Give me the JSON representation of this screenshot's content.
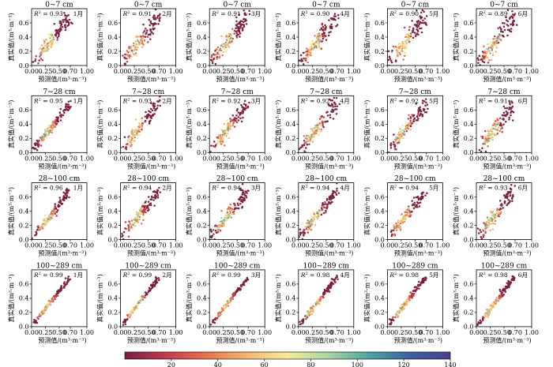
{
  "chart_data": {
    "type": "scatter",
    "layout_grid": {
      "rows": 4,
      "cols": 6
    },
    "xlabel": "预测值/(m³·m⁻³)",
    "ylabel": "真实值/(m³·m⁻³)",
    "xticks": [
      "0.00",
      "0.25",
      "0.50",
      "0.70",
      "1.00"
    ],
    "yticks": [
      "0.0",
      "0.2",
      "0.4",
      "0.6"
    ],
    "xlim": [
      0,
      1.0
    ],
    "ylim": [
      0,
      0.8
    ],
    "depths": [
      "0~7 cm",
      "7~28 cm",
      "28~100 cm",
      "100~289 cm"
    ],
    "months": [
      "1月",
      "2月",
      "3月",
      "4月",
      "5月",
      "6月"
    ],
    "r2_label": "R² = ",
    "r2": [
      [
        "0.93",
        "0.91",
        "0.91",
        "0.90",
        "0.90",
        "0.89"
      ],
      [
        "0.95",
        "0.93",
        "0.92",
        "0.92",
        "0.92",
        "0.91"
      ],
      [
        "0.96",
        "0.94",
        "0.94",
        "0.94",
        "0.94",
        "0.93"
      ],
      [
        "0.99",
        "0.99",
        "0.99",
        "0.98",
        "0.98",
        "0.98"
      ]
    ],
    "colorbar": {
      "ticks": [
        "20",
        "40",
        "60",
        "80",
        "100",
        "120",
        "140"
      ],
      "range": [
        0,
        140
      ],
      "colors": [
        "#7b1f3f",
        "#c33a4a",
        "#e8714f",
        "#f5b66d",
        "#f6ea9c",
        "#a7d6a1",
        "#4fa3a4",
        "#3b62a0",
        "#4a3f8f"
      ]
    }
  }
}
